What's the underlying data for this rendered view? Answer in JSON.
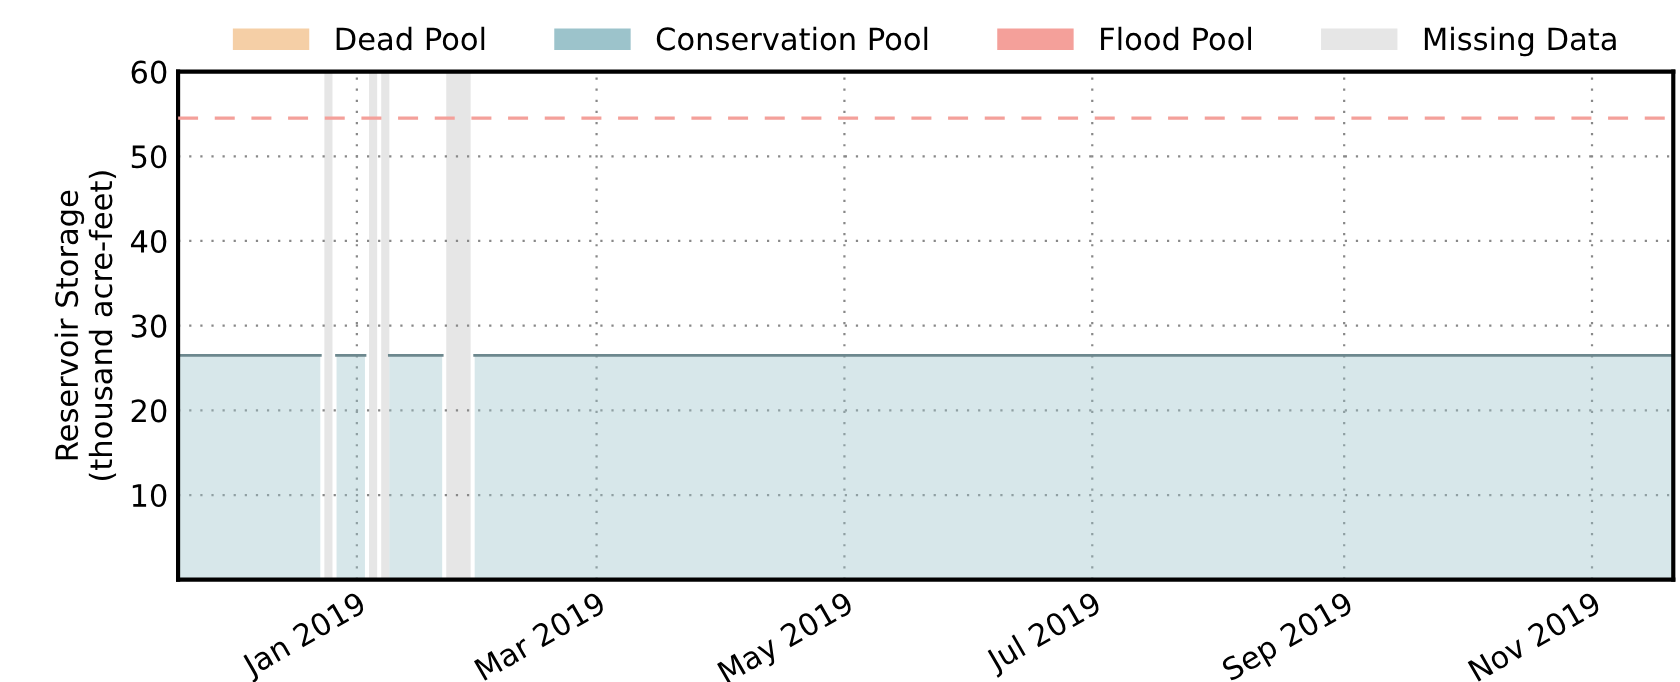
{
  "chart_data": {
    "type": "area",
    "ylabel": "Reservoir Storage\n(thousand acre-feet)",
    "x": [
      "2018-11-18",
      "2018-12-23",
      "2018-12-25",
      "2018-12-27",
      "2019-01-03",
      "2019-01-05",
      "2019-01-06",
      "2019-01-08",
      "2019-01-09",
      "2019-01-22",
      "2019-01-26",
      "2019-01-30",
      "2019-11-21"
    ],
    "series": [
      {
        "name": "Dead Pool",
        "color": "#f5cfa6",
        "values": [
          null,
          null,
          null,
          null,
          null,
          null,
          null,
          null,
          null,
          null,
          null,
          null,
          null
        ]
      },
      {
        "name": "Conservation Pool",
        "color": "#9cc3cb",
        "values": [
          26.5,
          26.5,
          null,
          26.5,
          26.5,
          null,
          null,
          null,
          26.5,
          26.5,
          null,
          26.5,
          26.5
        ]
      }
    ],
    "ref_lines": [
      {
        "axis": "y",
        "value": 54.5,
        "label": "Flood Pool",
        "color": "#f4a09a",
        "line_style": "dashed"
      }
    ],
    "bands": [
      {
        "axis": "x",
        "from": "2018-12-24",
        "to": "2018-12-26",
        "label": "Missing Data",
        "color": "#e6e6e6"
      },
      {
        "axis": "x",
        "from": "2019-01-04",
        "to": "2019-01-06",
        "color": "#e6e6e6"
      },
      {
        "axis": "x",
        "from": "2019-01-07",
        "to": "2019-01-09",
        "color": "#e6e6e6"
      },
      {
        "axis": "x",
        "from": "2019-01-23",
        "to": "2019-01-29",
        "color": "#e6e6e6"
      }
    ],
    "xlim": [
      "2018-11-18",
      "2019-11-21"
    ],
    "xticks": [
      {
        "value": "2019-01-01",
        "label": "Jan 2019"
      },
      {
        "value": "2019-03-01",
        "label": "Mar 2019"
      },
      {
        "value": "2019-05-01",
        "label": "May 2019"
      },
      {
        "value": "2019-07-01",
        "label": "Jul 2019"
      },
      {
        "value": "2019-09-01",
        "label": "Sep 2019"
      },
      {
        "value": "2019-11-01",
        "label": "Nov 2019"
      }
    ],
    "ylim": [
      0,
      60
    ],
    "yticks": [
      10,
      20,
      30,
      40,
      50,
      60
    ],
    "grid": true,
    "legend": "top"
  }
}
